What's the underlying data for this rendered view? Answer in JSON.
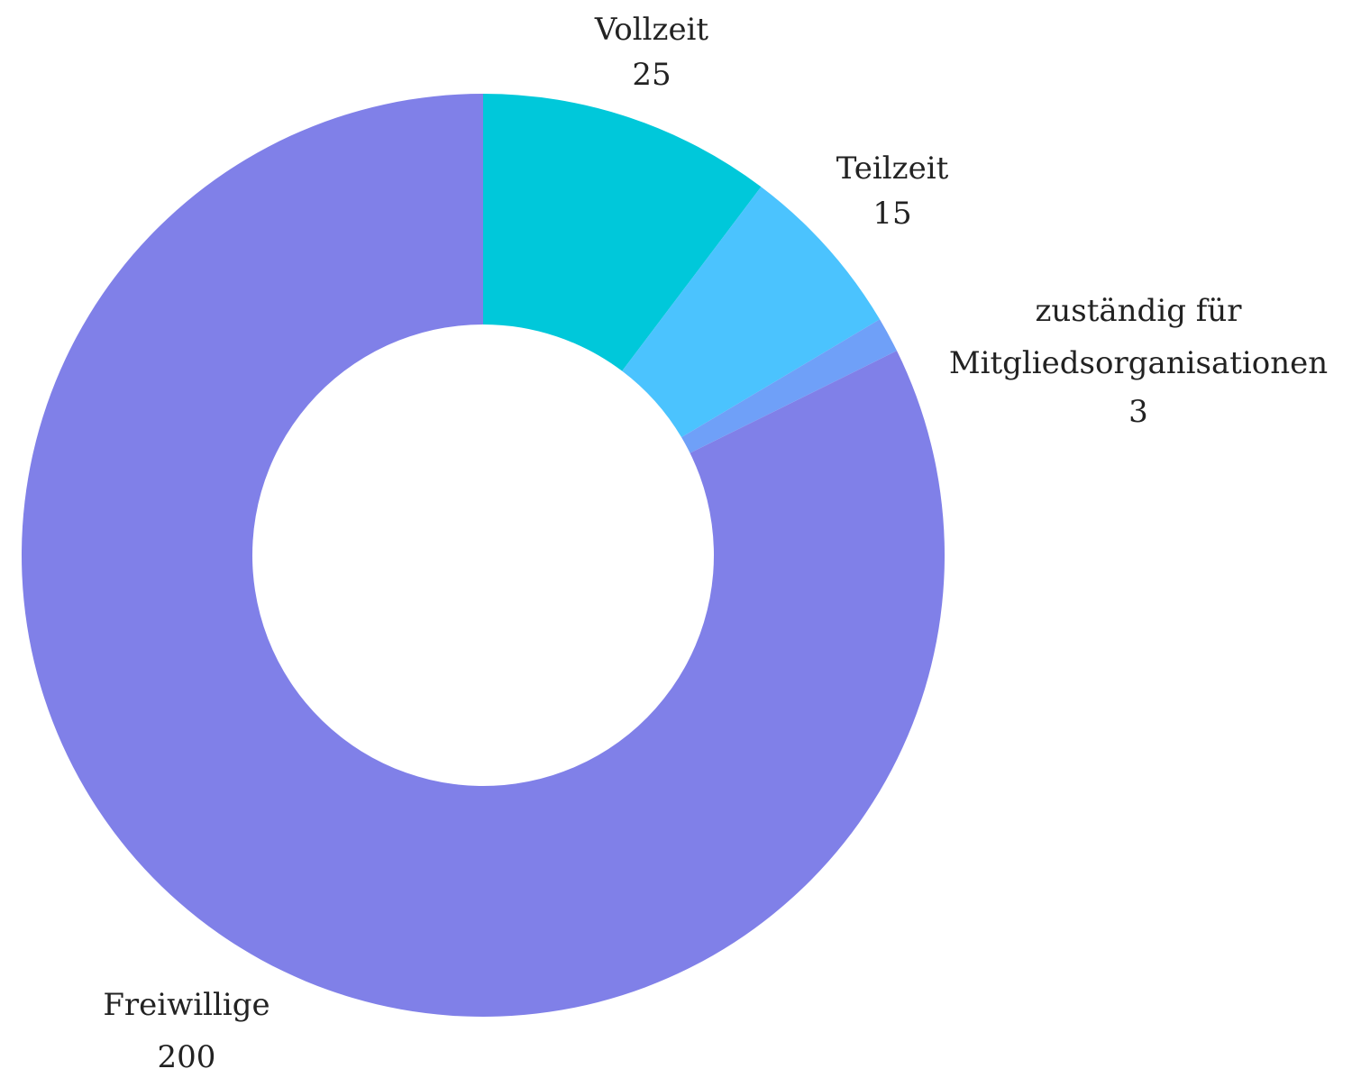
{
  "chart_data": {
    "type": "donut",
    "categories": [
      "Vollzeit",
      "Teilzeit",
      "zuständig für Mitgliedsorganisationen",
      "Freiwillige"
    ],
    "values": [
      25,
      15,
      3,
      200
    ],
    "colors": [
      "#00c8da",
      "#4bc3fe",
      "#6fa0f8",
      "#8080e8"
    ]
  }
}
